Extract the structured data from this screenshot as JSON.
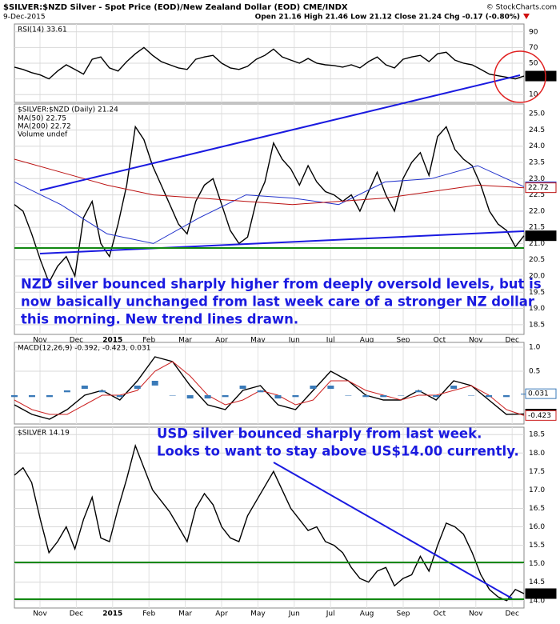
{
  "header": {
    "title": "$SILVER:$NZD Silver - Spot Price (EOD)/New Zealand Dollar (EOD) CME/INDX",
    "date": "9-Dec-2015",
    "quote": "Open 21.16 High 21.46 Low 21.12 Close 21.24 Chg -0.17 (-0.80%)",
    "source": "© StockCharts.com"
  },
  "months": [
    "Nov",
    "Dec",
    "2015",
    "Feb",
    "Mar",
    "Apr",
    "May",
    "Jun",
    "Jul",
    "Aug",
    "Sep",
    "Oct",
    "Nov",
    "Dec"
  ],
  "chart_data": [
    {
      "type": "line",
      "title": "RSI(14) 33.61",
      "ylim": [
        0,
        100
      ],
      "yticks": [
        90,
        70,
        50,
        30,
        10
      ],
      "series": [
        {
          "name": "RSI(14)",
          "color": "#000000",
          "values": [
            45,
            42,
            38,
            35,
            30,
            40,
            48,
            42,
            36,
            55,
            58,
            44,
            40,
            52,
            62,
            70,
            60,
            52,
            48,
            44,
            42,
            55,
            58,
            60,
            50,
            44,
            42,
            46,
            55,
            60,
            68,
            58,
            54,
            50,
            56,
            50,
            48,
            47,
            45,
            48,
            44,
            52,
            58,
            48,
            44,
            55,
            58,
            60,
            52,
            62,
            64,
            54,
            50,
            48,
            42,
            36,
            34,
            32,
            30,
            33.61
          ]
        }
      ]
    },
    {
      "type": "line",
      "title": "$SILVER:$NZD (Daily) 21.24",
      "ylim": [
        18.2,
        25.3
      ],
      "yticks": [
        {
          "value": 25,
          "label": "25.0"
        },
        {
          "value": 24.5,
          "label": "24.5"
        },
        {
          "value": 24,
          "label": "24.0"
        },
        {
          "value": 23.5,
          "label": "23.5"
        },
        {
          "value": 23,
          "label": "23.0"
        },
        {
          "value": 22.5,
          "label": "22.5"
        },
        {
          "value": 22,
          "label": "22.0"
        },
        {
          "value": 21.5,
          "label": "21.5"
        },
        {
          "value": 21,
          "label": "21.0"
        },
        {
          "value": 20.5,
          "label": "20.5"
        },
        {
          "value": 20,
          "label": "20.0"
        },
        {
          "value": 19.5,
          "label": "19.5"
        },
        {
          "value": 19,
          "label": "19.0"
        },
        {
          "value": 18.5,
          "label": "18.5"
        }
      ],
      "legend": [
        "MA(50) 22.75",
        "MA(200) 22.72",
        "Volume undef"
      ],
      "annotation": [
        "NZD silver bounced sharply higher from deeply oversold levels, but is",
        "now basically unchanged from last week care of a stronger NZ dollar",
        "this morning. New trend lines drawn."
      ],
      "series": [
        {
          "name": "$SILVER:$NZD",
          "color": "#000000",
          "values": [
            22.2,
            22.0,
            21.3,
            20.5,
            19.8,
            20.3,
            20.6,
            20.0,
            21.8,
            22.3,
            21.0,
            20.6,
            21.6,
            22.8,
            24.6,
            24.2,
            23.4,
            22.8,
            22.2,
            21.6,
            21.3,
            22.3,
            22.8,
            23.0,
            22.2,
            21.4,
            21.0,
            21.2,
            22.3,
            22.9,
            24.1,
            23.6,
            23.3,
            22.8,
            23.4,
            22.9,
            22.6,
            22.5,
            22.3,
            22.5,
            22.0,
            22.6,
            23.2,
            22.5,
            22.0,
            23.0,
            23.5,
            23.8,
            23.1,
            24.3,
            24.6,
            23.9,
            23.6,
            23.4,
            22.8,
            22.0,
            21.6,
            21.4,
            20.9,
            21.24
          ]
        },
        {
          "name": "MA(50)",
          "color": "#2233cc",
          "values": [
            22.9,
            22.2,
            21.3,
            21.0,
            21.8,
            22.5,
            22.4,
            22.2,
            22.9,
            23.0,
            23.4,
            22.75
          ]
        },
        {
          "name": "MA(200)",
          "color": "#bb1111",
          "values": [
            23.6,
            23.2,
            22.8,
            22.5,
            22.4,
            22.3,
            22.2,
            22.3,
            22.4,
            22.6,
            22.8,
            22.72
          ]
        }
      ]
    },
    {
      "type": "line",
      "title": "MACD(12,26,9) -0.392, -0.423, 0.031",
      "ylim": [
        -0.6,
        1.1
      ],
      "yticks": [
        {
          "value": 1,
          "label": "1.0"
        },
        {
          "value": 0.5,
          "label": "0.5"
        }
      ],
      "series": [
        {
          "name": "MACD",
          "color": "#000000",
          "values": [
            -0.2,
            -0.4,
            -0.5,
            -0.3,
            0.0,
            0.1,
            -0.1,
            0.3,
            0.8,
            0.7,
            0.2,
            -0.2,
            -0.3,
            0.1,
            0.2,
            -0.2,
            -0.3,
            0.1,
            0.5,
            0.3,
            0.0,
            -0.1,
            -0.1,
            0.1,
            -0.1,
            0.3,
            0.2,
            -0.1,
            -0.4,
            -0.392
          ]
        },
        {
          "name": "Signal",
          "color": "#cc2222",
          "values": [
            -0.1,
            -0.3,
            -0.4,
            -0.4,
            -0.2,
            0.0,
            0.0,
            0.1,
            0.5,
            0.7,
            0.4,
            0.0,
            -0.2,
            -0.1,
            0.1,
            0.0,
            -0.2,
            -0.1,
            0.3,
            0.3,
            0.1,
            0.0,
            -0.1,
            0.0,
            0.0,
            0.1,
            0.2,
            0.0,
            -0.3,
            -0.423
          ]
        },
        {
          "name": "Histogram",
          "color": "#3a7ab8",
          "values": [
            -0.1,
            -0.1,
            -0.1,
            0.1,
            0.2,
            0.1,
            -0.1,
            0.2,
            0.3,
            0.0,
            -0.2,
            -0.2,
            -0.1,
            0.2,
            0.1,
            -0.2,
            -0.1,
            0.2,
            0.2,
            0.0,
            -0.1,
            -0.1,
            0.0,
            0.1,
            -0.1,
            0.2,
            0.0,
            -0.1,
            -0.1,
            0.031
          ]
        }
      ]
    },
    {
      "type": "line",
      "title": "$SILVER 14.19",
      "ylim": [
        13.8,
        18.7
      ],
      "yticks": [
        {
          "value": 18.5,
          "label": "18.5"
        },
        {
          "value": 18,
          "label": "18.0"
        },
        {
          "value": 17.5,
          "label": "17.5"
        },
        {
          "value": 17,
          "label": "17.0"
        },
        {
          "value": 16.5,
          "label": "16.5"
        },
        {
          "value": 16,
          "label": "16.0"
        },
        {
          "value": 15.5,
          "label": "15.5"
        },
        {
          "value": 15,
          "label": "15.0"
        },
        {
          "value": 14.5,
          "label": "14.5"
        },
        {
          "value": 14,
          "label": "14.0"
        }
      ],
      "annotation": [
        "USD silver bounced sharply from last week.",
        "Looks to want to stay above US$14.00 currently."
      ],
      "series": [
        {
          "name": "$SILVER",
          "color": "#000000",
          "values": [
            17.4,
            17.6,
            17.2,
            16.2,
            15.3,
            15.6,
            16.0,
            15.4,
            16.2,
            16.8,
            15.7,
            15.6,
            16.5,
            17.3,
            18.2,
            17.6,
            17.0,
            16.7,
            16.4,
            16.0,
            15.6,
            16.5,
            16.9,
            16.6,
            16.0,
            15.7,
            15.6,
            16.3,
            16.7,
            17.1,
            17.5,
            17.0,
            16.5,
            16.2,
            15.9,
            16.0,
            15.6,
            15.5,
            15.3,
            14.9,
            14.6,
            14.5,
            14.8,
            14.9,
            14.4,
            14.6,
            14.7,
            15.2,
            14.8,
            15.5,
            16.1,
            16.0,
            15.8,
            15.3,
            14.7,
            14.3,
            14.1,
            14.0,
            14.3,
            14.19
          ]
        }
      ]
    }
  ]
}
